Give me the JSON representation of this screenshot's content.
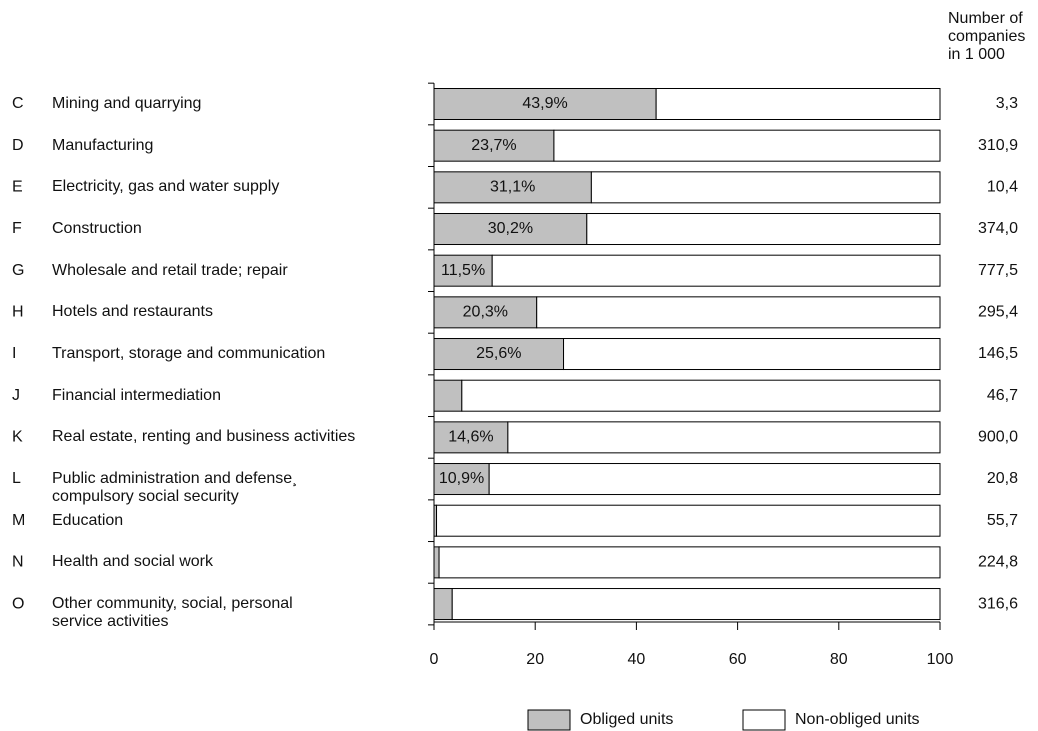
{
  "chart_data": {
    "type": "bar",
    "orientation": "horizontal",
    "stacked": true,
    "codes": [
      "C",
      "D",
      "E",
      "F",
      "G",
      "H",
      "I",
      "J",
      "K",
      "L",
      "M",
      "N",
      "O"
    ],
    "categories": [
      "Mining and quarrying",
      "Manufacturing",
      "Electricity, gas and water supply",
      "Construction",
      "Wholesale and retail trade; repair",
      "Hotels and restaurants",
      "Transport, storage and communication",
      "Financial intermediation",
      "Real estate, renting and business activities",
      "Public administration and defense¸\ncompulsory social security",
      "Education",
      "Health and social work",
      "Other community, social, personal\nservice activities"
    ],
    "series": [
      {
        "name": "Obliged units",
        "color": "#c0c0c0",
        "values": [
          43.9,
          23.7,
          31.1,
          30.2,
          11.5,
          20.3,
          25.6,
          5.5,
          14.6,
          10.9,
          0.5,
          1.0,
          3.6
        ],
        "value_labels": [
          "43,9%",
          "23,7%",
          "31,1%",
          "30,2%",
          "11,5%",
          "20,3%",
          "25,6%",
          "5,5%",
          "14,6%",
          "10,9%",
          "0,5%",
          "1,0%",
          "3,6%"
        ]
      },
      {
        "name": "Non-obliged units",
        "color": "#ffffff",
        "values": [
          56.1,
          76.3,
          68.9,
          69.8,
          88.5,
          79.7,
          74.4,
          94.5,
          85.4,
          89.1,
          99.5,
          99.0,
          96.4
        ]
      }
    ],
    "xlim": [
      0,
      100
    ],
    "xticks": [
      0,
      20,
      40,
      60,
      80,
      100
    ],
    "companies_title": "Number of\ncompanies\nin 1 000",
    "companies": [
      3.3,
      310.9,
      10.4,
      374.0,
      777.5,
      295.4,
      146.5,
      46.7,
      900.0,
      20.8,
      55.7,
      224.8,
      316.6
    ],
    "companies_labels": [
      "3,3",
      "310,9",
      "10,4",
      "374,0",
      "777,5",
      "295,4",
      "146,5",
      "46,7",
      "900,0",
      "20,8",
      "55,7",
      "224,8",
      "316,6"
    ]
  }
}
